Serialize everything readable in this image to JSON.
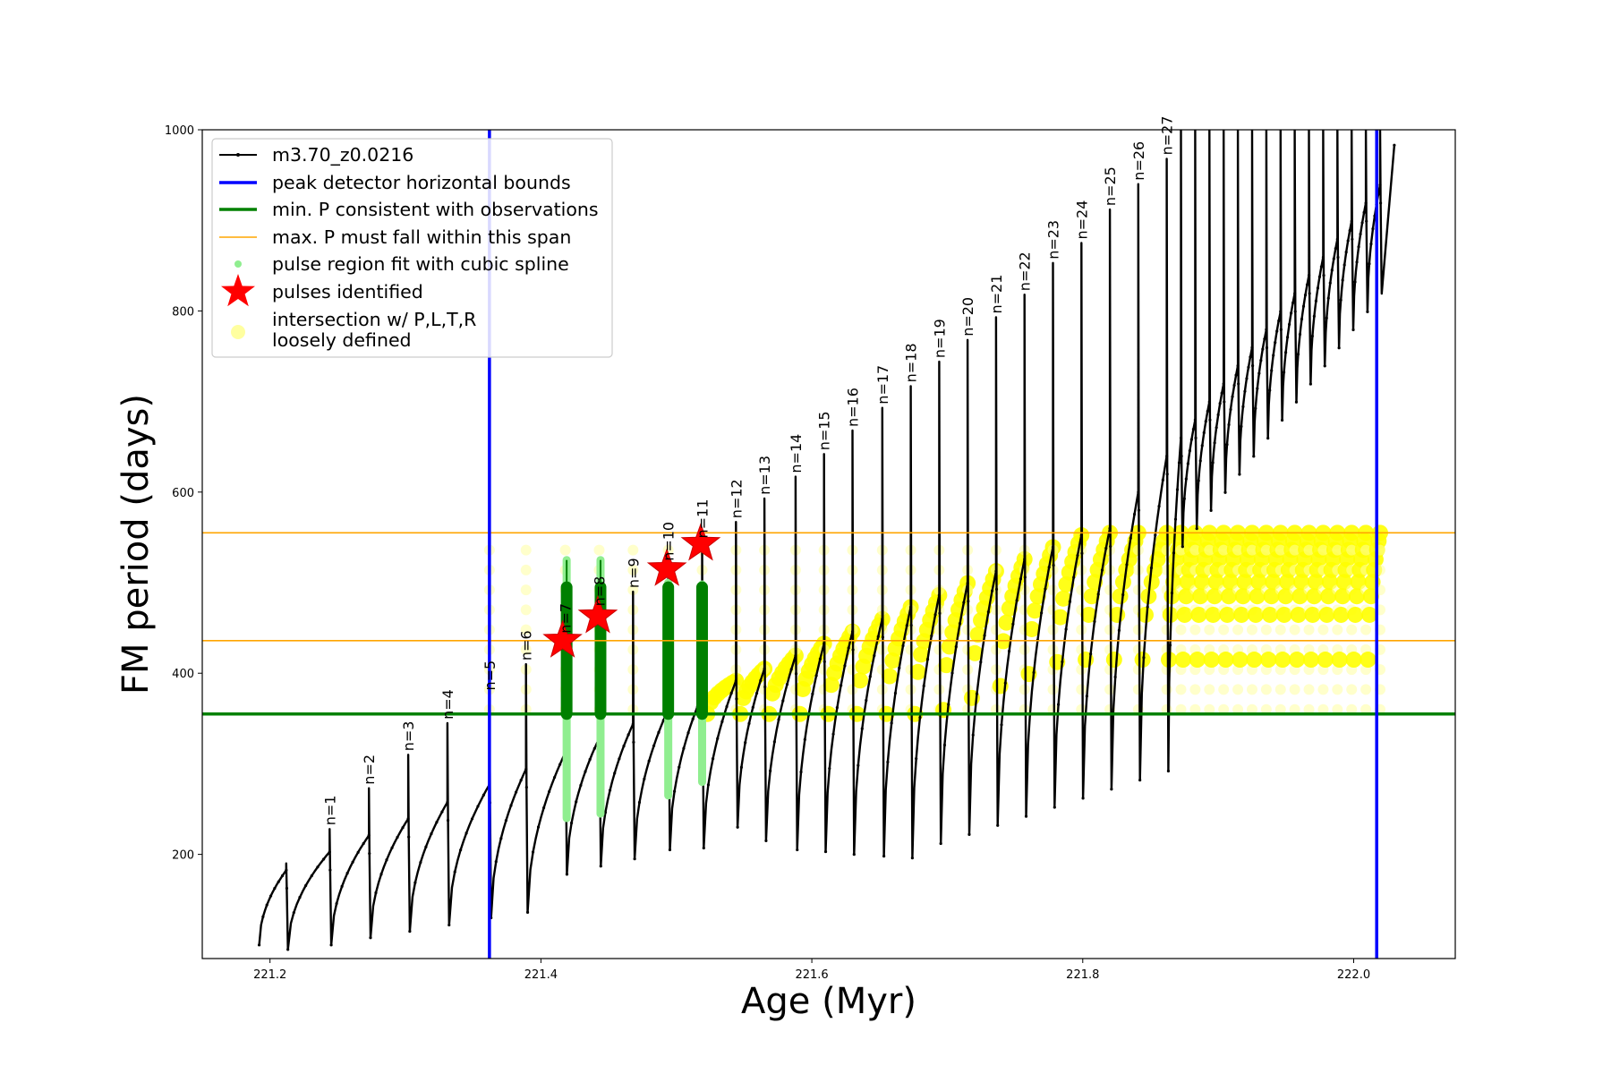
{
  "chart_data": {
    "type": "line",
    "xlabel": "Age (Myr)",
    "ylabel": "FM period (days)",
    "xlim": [
      221.15,
      222.075
    ],
    "ylim": [
      85,
      1000
    ],
    "xticks": [
      221.2,
      221.4,
      221.6,
      221.8,
      222.0
    ],
    "xtick_labels": [
      "221.2",
      "221.4",
      "221.6",
      "221.8",
      "222.0"
    ],
    "yticks": [
      200,
      400,
      600,
      800,
      1000
    ],
    "ytick_labels": [
      "200",
      "400",
      "600",
      "800",
      "1000"
    ],
    "grid": false,
    "legend_position": "top-left",
    "legend": [
      {
        "label": "m3.70_z0.0216",
        "kind": "line-marker",
        "color": "#000000"
      },
      {
        "label": "peak detector horizontal bounds",
        "kind": "line",
        "color": "#0000ff"
      },
      {
        "label": "min. P consistent with observations",
        "kind": "line",
        "color": "#008000"
      },
      {
        "label": "max. P must fall within this span",
        "kind": "line",
        "color": "#ffa500"
      },
      {
        "label": "pulse region fit with cubic spline",
        "kind": "dot",
        "color": "#90ee90"
      },
      {
        "label": "pulses identified",
        "kind": "star",
        "color": "#ff0000"
      },
      {
        "label": "intersection w/ P,L,T,R",
        "label_line2": "loosely defined",
        "kind": "dot",
        "color": "#ffffa0"
      }
    ],
    "vertical_lines": [
      {
        "x": 221.362,
        "color": "#0000ff",
        "series": "peak detector horizontal bounds"
      },
      {
        "x": 222.017,
        "color": "#0000ff",
        "series": "peak detector horizontal bounds"
      }
    ],
    "horizontal_lines": [
      {
        "y": 355,
        "color": "#008000",
        "series": "min. P consistent with observations"
      },
      {
        "y": 436,
        "color": "#ffa500",
        "series": "max. P must fall within this span"
      },
      {
        "y": 555,
        "color": "#ffa500",
        "series": "max. P must fall within this span"
      }
    ],
    "pulse_cycles": [
      {
        "n": 1,
        "age": 221.244,
        "peak": 228,
        "min": 100
      },
      {
        "n": 2,
        "age": 221.273,
        "peak": 273,
        "min": 108
      },
      {
        "n": 3,
        "age": 221.302,
        "peak": 310,
        "min": 115
      },
      {
        "n": 4,
        "age": 221.331,
        "peak": 345,
        "min": 122
      },
      {
        "n": 5,
        "age": 221.362,
        "peak": 377,
        "min": 130
      },
      {
        "n": 6,
        "age": 221.389,
        "peak": 410,
        "min": 136
      },
      {
        "n": 7,
        "age": 221.418,
        "peak": 440,
        "min": 178
      },
      {
        "n": 8,
        "age": 221.443,
        "peak": 470,
        "min": 187
      },
      {
        "n": 9,
        "age": 221.468,
        "peak": 490,
        "min": 195
      },
      {
        "n": 10,
        "age": 221.494,
        "peak": 520,
        "min": 205
      },
      {
        "n": 11,
        "age": 221.519,
        "peak": 545,
        "min": 207
      },
      {
        "n": 12,
        "age": 221.544,
        "peak": 567,
        "min": 230
      },
      {
        "n": 13,
        "age": 221.565,
        "peak": 593,
        "min": 215
      },
      {
        "n": 14,
        "age": 221.588,
        "peak": 617,
        "min": 205
      },
      {
        "n": 15,
        "age": 221.609,
        "peak": 642,
        "min": 203
      },
      {
        "n": 16,
        "age": 221.63,
        "peak": 668,
        "min": 200
      },
      {
        "n": 17,
        "age": 221.652,
        "peak": 693,
        "min": 198
      },
      {
        "n": 18,
        "age": 221.673,
        "peak": 717,
        "min": 196
      },
      {
        "n": 19,
        "age": 221.694,
        "peak": 744,
        "min": 212
      },
      {
        "n": 20,
        "age": 221.715,
        "peak": 768,
        "min": 222
      },
      {
        "n": 21,
        "age": 221.736,
        "peak": 793,
        "min": 232
      },
      {
        "n": 22,
        "age": 221.757,
        "peak": 818,
        "min": 242
      },
      {
        "n": 23,
        "age": 221.778,
        "peak": 853,
        "min": 252
      },
      {
        "n": 24,
        "age": 221.799,
        "peak": 875,
        "min": 262
      },
      {
        "n": 25,
        "age": 221.82,
        "peak": 912,
        "min": 272
      },
      {
        "n": 26,
        "age": 221.841,
        "peak": 940,
        "min": 282
      },
      {
        "n": 27,
        "age": 221.862,
        "peak": 968,
        "min": 292
      }
    ],
    "pulses_identified": [
      {
        "n": 7,
        "age": 221.416,
        "period": 436
      },
      {
        "n": 8,
        "age": 221.442,
        "period": 463
      },
      {
        "n": 10,
        "age": 221.493,
        "period": 515
      },
      {
        "n": 11,
        "age": 221.518,
        "period": 543
      }
    ],
    "spline_fit_pulses": [
      {
        "n": 7,
        "age": 221.419,
        "min": 240,
        "max": 525,
        "in_band_min": 355,
        "in_band_max": 495
      },
      {
        "n": 8,
        "age": 221.444,
        "min": 245,
        "max": 525,
        "in_band_min": 355,
        "in_band_max": 495
      },
      {
        "n": 10,
        "age": 221.494,
        "min": 265,
        "max": 500,
        "in_band_min": 355,
        "in_band_max": 495
      },
      {
        "n": 11,
        "age": 221.519,
        "min": 280,
        "max": 498,
        "in_band_min": 355,
        "in_band_max": 495
      }
    ],
    "track_end": {
      "age": 222.03,
      "period": 983
    }
  }
}
